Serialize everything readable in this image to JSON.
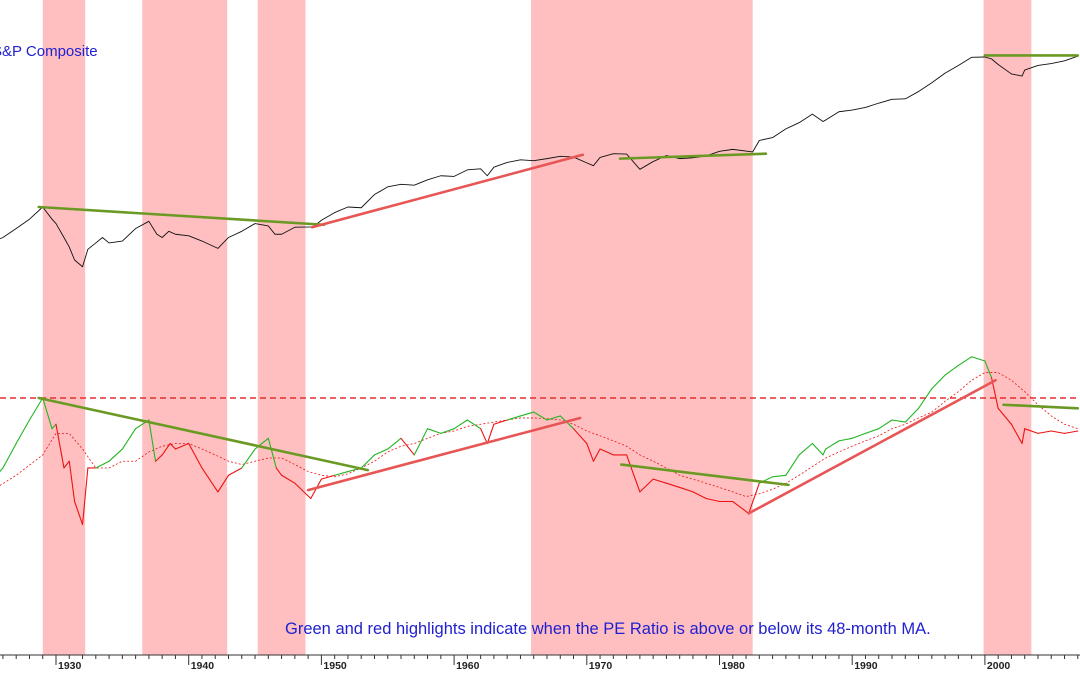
{
  "chart_data": {
    "type": "line",
    "title": "",
    "top_panel_label": "S&P Composite",
    "annotation": "Green and red highlights indicate when the PE Ratio is above or below its 48-month MA.",
    "x_axis": {
      "range": [
        1925,
        2007
      ],
      "ticks": [
        1930,
        1940,
        1950,
        1960,
        1970,
        1980,
        1990,
        2000
      ]
    },
    "y_axis_log_scale_top_panel": true,
    "shaded_periods": [
      {
        "start": 1929.0,
        "end": 1932.2
      },
      {
        "start": 1936.5,
        "end": 1942.9
      },
      {
        "start": 1945.2,
        "end": 1948.8
      },
      {
        "start": 1965.8,
        "end": 1982.5
      },
      {
        "start": 1999.9,
        "end": 2003.5
      }
    ],
    "colors": {
      "shading": "#ffbfc0",
      "price_line": "#111111",
      "pe_above_ma": "#22b522",
      "pe_below_ma": "#ee1111",
      "moving_average": "#ee1111",
      "trendline_green": "#6b9a24",
      "trendline_red": "#e85555",
      "horizontal_reference": "#e03030",
      "label_text": "#2020d0"
    },
    "series": [
      {
        "name": "S&P Composite",
        "panel": "top",
        "scale": "log",
        "x": [
          1925,
          1926,
          1927,
          1928,
          1929,
          1929.7,
          1930,
          1930.6,
          1931,
          1931.4,
          1932,
          1932.4,
          1933,
          1933.5,
          1934,
          1935,
          1936,
          1937,
          1937.6,
          1938,
          1938.5,
          1939,
          1940,
          1941,
          1942.2,
          1943,
          1944,
          1945,
          1946,
          1946.5,
          1947,
          1948,
          1949.4,
          1950,
          1951,
          1952,
          1953,
          1954,
          1955,
          1956,
          1957,
          1958,
          1959,
          1960,
          1961,
          1962,
          1962.5,
          1963,
          1964,
          1965,
          1966,
          1967,
          1968,
          1969,
          1970,
          1970.5,
          1971,
          1972,
          1973,
          1974,
          1975,
          1976,
          1977,
          1978,
          1979,
          1980,
          1981,
          1982.5,
          1983,
          1984,
          1985,
          1986,
          1987,
          1987.8,
          1988,
          1989,
          1990,
          1991,
          1992,
          1993,
          1994,
          1995,
          1996,
          1997,
          1998,
          1999,
          2000,
          2000.5,
          2001,
          2002,
          2002.8,
          2003,
          2004,
          2005,
          2006,
          2007
        ],
        "y": [
          9.5,
          11,
          14,
          18,
          25,
          18,
          16,
          11,
          8.5,
          6,
          5,
          8,
          9.5,
          11,
          9.5,
          10,
          14,
          17,
          12,
          11,
          13,
          12,
          11.5,
          10,
          8.2,
          11,
          13,
          16,
          15,
          12,
          12,
          14.5,
          14.6,
          17.5,
          21.5,
          25,
          24.5,
          35,
          43,
          46,
          45,
          52,
          58,
          57,
          68,
          70,
          58,
          73,
          83,
          89,
          87,
          92,
          98,
          96,
          82,
          76,
          95,
          105,
          104,
          69,
          85,
          100,
          92,
          94,
          99,
          112,
          118,
          110,
          150,
          162,
          205,
          242,
          305,
          250,
          260,
          325,
          340,
          365,
          410,
          455,
          460,
          560,
          710,
          920,
          1130,
          1410,
          1420,
          1350,
          1160,
          900,
          850,
          1000,
          1130,
          1190,
          1280,
          1450
        ]
      },
      {
        "name": "PE Ratio",
        "panel": "bottom",
        "scale": "log",
        "x": [
          1925,
          1926,
          1927,
          1928,
          1929,
          1929.7,
          1930,
          1930.6,
          1931,
          1931.4,
          1932,
          1932.4,
          1933,
          1934,
          1935,
          1936,
          1937,
          1937.5,
          1938,
          1938.6,
          1939,
          1940,
          1941,
          1942.2,
          1943,
          1944,
          1945,
          1946,
          1946.6,
          1947,
          1948,
          1949.2,
          1950,
          1951,
          1952,
          1953,
          1954,
          1955,
          1956,
          1957,
          1958,
          1959,
          1960,
          1961,
          1962,
          1962.5,
          1963,
          1964,
          1965,
          1966,
          1967,
          1968,
          1969,
          1970,
          1970.5,
          1971,
          1972,
          1973,
          1974,
          1975,
          1976,
          1977,
          1978,
          1979,
          1980,
          1981,
          1982.2,
          1983,
          1984,
          1985,
          1986,
          1987,
          1987.8,
          1988,
          1989,
          1990,
          1991,
          1992,
          1993,
          1994,
          1995,
          1996,
          1997,
          1998,
          1999,
          2000,
          2000.5,
          2001,
          2002,
          2002.8,
          2003,
          2004,
          2005,
          2006,
          2007
        ],
        "y": [
          11,
          13,
          17,
          22,
          28,
          20,
          21,
          13,
          14,
          9,
          7,
          13,
          13,
          14,
          16,
          20,
          22,
          14,
          15,
          17,
          16,
          17,
          13,
          10,
          12,
          13,
          16,
          18,
          13,
          12,
          11,
          9.3,
          11.5,
          12,
          12.5,
          13,
          15,
          16,
          18,
          15,
          20,
          19,
          20,
          22,
          20,
          17,
          21,
          22,
          23,
          24,
          22,
          23,
          20,
          17,
          14,
          16,
          15,
          15,
          10,
          11.5,
          11,
          10.5,
          10,
          9.3,
          9,
          9,
          7.9,
          11,
          11.8,
          12,
          15,
          17,
          15,
          16,
          17.5,
          18,
          19,
          20,
          22,
          21.5,
          25,
          31,
          36,
          40,
          44,
          42,
          35,
          25,
          21,
          17,
          20,
          19,
          19.5,
          19,
          19.5
        ]
      },
      {
        "name": "48-month MA",
        "panel": "bottom",
        "scale": "log",
        "x": [
          1925,
          1927,
          1929,
          1930,
          1931,
          1932,
          1933,
          1934,
          1935,
          1936,
          1937,
          1938,
          1939,
          1940,
          1941,
          1942,
          1943,
          1944,
          1945,
          1946,
          1947,
          1948,
          1949,
          1950,
          1951,
          1952,
          1953,
          1954,
          1955,
          1956,
          1957,
          1958,
          1959,
          1960,
          1961,
          1962,
          1963,
          1964,
          1965,
          1966,
          1967,
          1968,
          1969,
          1970,
          1971,
          1972,
          1973,
          1974,
          1975,
          1976,
          1977,
          1978,
          1979,
          1980,
          1981,
          1982,
          1983,
          1984,
          1985,
          1986,
          1987,
          1988,
          1989,
          1990,
          1991,
          1992,
          1993,
          1994,
          1995,
          1996,
          1997,
          1998,
          1999,
          2000,
          2001,
          2002,
          2003,
          2004,
          2005,
          2006,
          2007
        ],
        "y": [
          10,
          12,
          15,
          19,
          19,
          16,
          13,
          13,
          14,
          14,
          15.5,
          16.5,
          17,
          17,
          16,
          15,
          14,
          13.5,
          14,
          14.5,
          14.5,
          13.5,
          12.5,
          12,
          11.8,
          12.2,
          13,
          14,
          15.5,
          16.5,
          17,
          18,
          19,
          19.5,
          20.5,
          21,
          21.5,
          22,
          22.5,
          22.5,
          22.3,
          22,
          21,
          19.5,
          18.5,
          17.5,
          16.5,
          15,
          14,
          13,
          12,
          11.5,
          11,
          10.5,
          10,
          9.5,
          9.8,
          10.3,
          11,
          12,
          13.2,
          14.5,
          15.5,
          16.5,
          17.5,
          18.5,
          20,
          21,
          22.5,
          24,
          27,
          30,
          34,
          37,
          37,
          34,
          30,
          26,
          23,
          21,
          20
        ]
      }
    ],
    "trendlines": [
      {
        "panel": "top",
        "color": "green",
        "points": [
          [
            1928.7,
            25
          ],
          [
            1950.2,
            15.5
          ]
        ]
      },
      {
        "panel": "top",
        "color": "red",
        "points": [
          [
            1949.3,
            14.5
          ],
          [
            1969.7,
            102
          ]
        ]
      },
      {
        "panel": "top",
        "color": "green",
        "points": [
          [
            1972.5,
            92
          ],
          [
            1983.5,
            105
          ]
        ]
      },
      {
        "panel": "top",
        "color": "green",
        "points": [
          [
            2000.0,
            1480
          ],
          [
            2007.0,
            1480
          ]
        ]
      },
      {
        "panel": "bottom",
        "color": "green",
        "points": [
          [
            1928.7,
            28
          ],
          [
            1953.5,
            12.7
          ]
        ]
      },
      {
        "panel": "bottom",
        "color": "red",
        "points": [
          [
            1949.0,
            10.2
          ],
          [
            1969.5,
            22.5
          ]
        ]
      },
      {
        "panel": "bottom",
        "color": "green",
        "points": [
          [
            1972.6,
            13.5
          ],
          [
            1985.2,
            10.8
          ]
        ]
      },
      {
        "panel": "bottom",
        "color": "red",
        "points": [
          [
            1982.2,
            7.9
          ],
          [
            2000.8,
            34
          ]
        ]
      },
      {
        "panel": "bottom",
        "color": "green",
        "points": [
          [
            2001.4,
            26
          ],
          [
            2007.0,
            25
          ]
        ]
      }
    ],
    "reference_line": {
      "panel": "bottom",
      "value": 28,
      "style": "dashed"
    }
  }
}
